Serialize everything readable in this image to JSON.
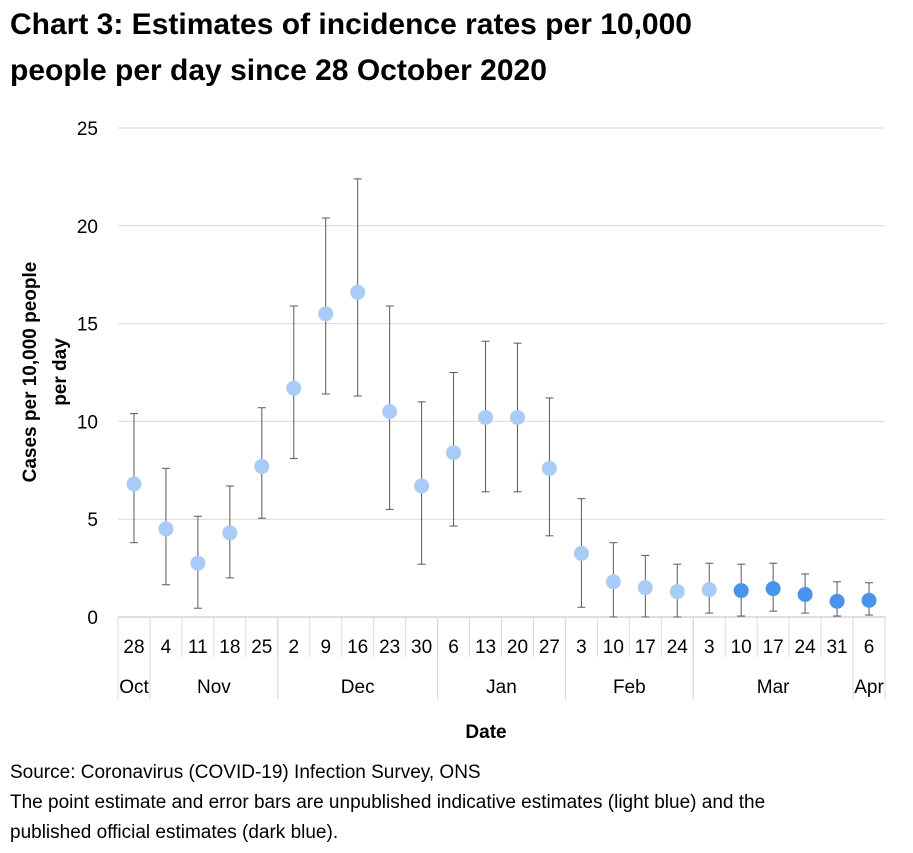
{
  "chart_data": {
    "type": "errorbar-scatter",
    "title": [
      "Chart 3: Estimates of incidence rates per 10,000",
      "people per day since 28 October 2020"
    ],
    "y_label": [
      "Cases per 10,000 people",
      "per day"
    ],
    "x_label": "Date",
    "categories": [
      "28",
      "4",
      "11",
      "18",
      "25",
      "2",
      "9",
      "16",
      "23",
      "30",
      "6",
      "13",
      "20",
      "27",
      "3",
      "10",
      "17",
      "24",
      "3",
      "10",
      "17",
      "24",
      "31",
      "6"
    ],
    "months": [
      "Oct",
      "Nov",
      "Nov",
      "Nov",
      "Nov",
      "Dec",
      "Dec",
      "Dec",
      "Dec",
      "Dec",
      "Jan",
      "Jan",
      "Jan",
      "Jan",
      "Feb",
      "Feb",
      "Feb",
      "Feb",
      "Mar",
      "Mar",
      "Mar",
      "Mar",
      "Mar",
      "Apr"
    ],
    "series": [
      {
        "color": "#a8cbf7",
        "values": [
          6.8,
          4.5,
          2.75,
          4.3,
          7.7,
          11.7,
          15.5,
          16.6,
          10.5,
          6.7,
          8.4,
          10.2,
          10.2,
          7.6,
          3.25,
          1.8,
          1.5,
          1.3,
          1.4,
          null,
          null,
          null,
          null,
          null
        ]
      },
      {
        "color": "#4a93ec",
        "values": [
          null,
          null,
          null,
          null,
          null,
          null,
          null,
          null,
          null,
          null,
          null,
          null,
          null,
          null,
          null,
          null,
          null,
          null,
          null,
          1.35,
          1.45,
          1.15,
          0.8,
          0.85
        ]
      }
    ],
    "lower": [
      3.8,
      1.65,
      0.45,
      2.0,
      5.05,
      8.1,
      11.4,
      11.3,
      5.5,
      2.7,
      4.65,
      6.4,
      6.4,
      4.15,
      0.5,
      0.0,
      0.0,
      0.0,
      0.2,
      0.05,
      0.3,
      0.2,
      0.05,
      0.1
    ],
    "upper": [
      10.4,
      7.6,
      5.15,
      6.7,
      10.7,
      15.9,
      20.4,
      22.4,
      15.9,
      11.0,
      12.5,
      14.1,
      14.0,
      11.2,
      6.05,
      3.8,
      3.15,
      2.7,
      2.75,
      2.7,
      2.75,
      2.2,
      1.8,
      1.75
    ],
    "ylim": [
      0,
      25
    ],
    "yticks": [
      0,
      5,
      10,
      15,
      20,
      25
    ],
    "grid": true,
    "notes": [
      "Source: Coronavirus (COVID-19) Infection Survey, ONS",
      "The point estimate and error bars are unpublished indicative estimates (light blue) and the",
      "published official estimates (dark blue)."
    ]
  }
}
